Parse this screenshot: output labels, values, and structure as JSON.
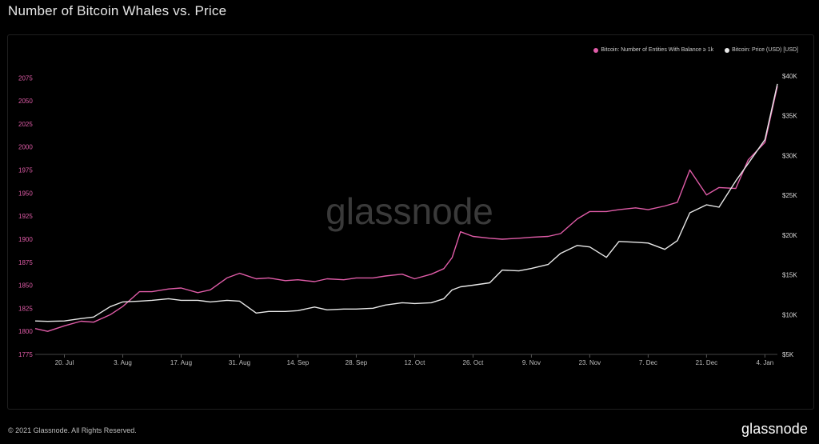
{
  "header": {
    "title": "Number of Bitcoin Whales vs. Price"
  },
  "footer": {
    "copyright": "© 2021 Glassnode. All Rights Reserved.",
    "logo": "glassnode"
  },
  "watermark": "glassnode",
  "colors": {
    "entities": "#e05ca8",
    "price": "#e8e8e8",
    "background": "#000000"
  },
  "chart_data": {
    "type": "line",
    "x": [
      "2020-07-13",
      "2020-07-16",
      "2020-07-20",
      "2020-07-24",
      "2020-07-27",
      "2020-07-31",
      "2020-08-03",
      "2020-08-07",
      "2020-08-10",
      "2020-08-14",
      "2020-08-17",
      "2020-08-21",
      "2020-08-24",
      "2020-08-28",
      "2020-08-31",
      "2020-09-04",
      "2020-09-07",
      "2020-09-11",
      "2020-09-14",
      "2020-09-18",
      "2020-09-21",
      "2020-09-25",
      "2020-09-28",
      "2020-10-02",
      "2020-10-05",
      "2020-10-09",
      "2020-10-12",
      "2020-10-16",
      "2020-10-19",
      "2020-10-21",
      "2020-10-23",
      "2020-10-26",
      "2020-10-30",
      "2020-11-02",
      "2020-11-06",
      "2020-11-09",
      "2020-11-13",
      "2020-11-16",
      "2020-11-20",
      "2020-11-23",
      "2020-11-27",
      "2020-11-30",
      "2020-12-04",
      "2020-12-07",
      "2020-12-11",
      "2020-12-14",
      "2020-12-17",
      "2020-12-21",
      "2020-12-24",
      "2020-12-28",
      "2020-12-31",
      "2021-01-04",
      "2021-01-07"
    ],
    "series": [
      {
        "name": "Bitcoin: Number of Entities With Balance ≥ 1k",
        "axis": "left",
        "values": [
          1803,
          1800,
          1806,
          1811,
          1810,
          1818,
          1827,
          1843,
          1843,
          1846,
          1847,
          1842,
          1845,
          1858,
          1863,
          1857,
          1858,
          1855,
          1856,
          1854,
          1857,
          1856,
          1858,
          1858,
          1860,
          1862,
          1857,
          1862,
          1868,
          1880,
          1908,
          1903,
          1901,
          1900,
          1901,
          1902,
          1903,
          1906,
          1922,
          1930,
          1930,
          1932,
          1934,
          1932,
          1936,
          1940,
          1975,
          1948,
          1956,
          1955,
          1986,
          2005,
          2066
        ]
      },
      {
        "name": "Bitcoin: Price (USD) [USD]",
        "axis": "right",
        "values": [
          9200,
          9150,
          9200,
          9500,
          9700,
          11000,
          11600,
          11700,
          11800,
          12000,
          11800,
          11800,
          11600,
          11800,
          11700,
          10200,
          10400,
          10400,
          10500,
          10950,
          10600,
          10700,
          10700,
          10800,
          11200,
          11500,
          11400,
          11500,
          12000,
          13100,
          13500,
          13700,
          14000,
          15600,
          15500,
          15800,
          16300,
          17700,
          18700,
          18500,
          17200,
          19200,
          19100,
          19000,
          18200,
          19300,
          22800,
          23800,
          23500,
          26800,
          29000,
          32000,
          39000
        ]
      }
    ],
    "x_tick_labels": [
      "20. Jul",
      "3. Aug",
      "17. Aug",
      "31. Aug",
      "14. Sep",
      "28. Sep",
      "12. Oct",
      "26. Oct",
      "9. Nov",
      "23. Nov",
      "7. Dec",
      "21. Dec",
      "4. Jan"
    ],
    "y_left_ticks": [
      1775,
      1800,
      1825,
      1850,
      1875,
      1900,
      1925,
      1950,
      1975,
      2000,
      2025,
      2050,
      2075
    ],
    "y_left_range": [
      1775,
      2090
    ],
    "y_right_ticks": [
      "$5K",
      "$10K",
      "$15K",
      "$20K",
      "$25K",
      "$30K",
      "$35K",
      "$40K"
    ],
    "y_right_values": [
      5000,
      10000,
      15000,
      20000,
      25000,
      30000,
      35000,
      40000
    ],
    "y_right_range": [
      5000,
      41500
    ],
    "legend": "top-right",
    "grid": false
  }
}
